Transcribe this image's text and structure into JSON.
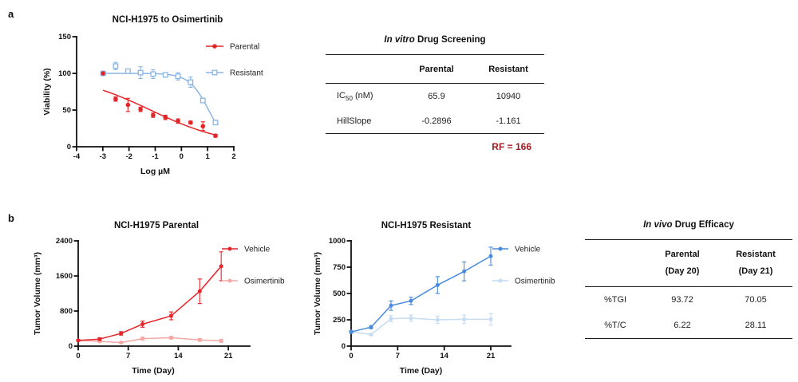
{
  "panel_labels": {
    "a": "a",
    "b": "b"
  },
  "colors": {
    "rf_note": "#a21d22",
    "axis": "#111111",
    "parental_red": "#e3262a",
    "osimertinib_pink": "#f4a8a4",
    "resistant_light_blue": "#8ab6e6",
    "vehicle_blue": "#4a8cdb",
    "osimertinib_pale_blue": "#c6dbf4"
  },
  "chart_data": [
    {
      "id": "dose-response",
      "type": "line",
      "title": "NCI-H1975 to Osimertinib",
      "xlabel": "Log µM",
      "ylabel": "Viability (%)",
      "xlim": [
        -4,
        2
      ],
      "ylim": [
        0,
        150
      ],
      "xticks": [
        -4,
        -3,
        -2,
        -1,
        0,
        1,
        2
      ],
      "yticks": [
        0,
        50,
        100,
        150
      ],
      "grid": false,
      "legend_position": "right",
      "series": [
        {
          "name": "Parental",
          "color": "#e3262a",
          "marker": "circle-filled",
          "x": [
            -2.99,
            -2.51,
            -2.04,
            -1.56,
            -1.08,
            -0.61,
            -0.13,
            0.35,
            0.82,
            1.3
          ],
          "y": [
            100,
            65,
            57,
            51,
            43,
            40,
            35,
            33,
            28,
            15
          ],
          "err": [
            0,
            3,
            9,
            3,
            3,
            3,
            3,
            2,
            6,
            2
          ],
          "fit": {
            "model": "four-parameter-logistic",
            "top": 100,
            "bottom": 0,
            "log_ic50": -1.181,
            "hill_slope": -0.2896,
            "range": [
              -2.99,
              1.3
            ]
          }
        },
        {
          "name": "Resistant",
          "color": "#8ab6e6",
          "marker": "square-open",
          "x": [
            -2.99,
            -2.51,
            -2.04,
            -1.56,
            -1.08,
            -0.61,
            -0.13,
            0.35,
            0.82,
            1.3
          ],
          "y": [
            100,
            110,
            103,
            101,
            99,
            98,
            96,
            88,
            63,
            33
          ],
          "err": [
            0,
            5,
            3,
            8,
            6,
            3,
            5,
            7,
            3,
            3
          ],
          "fit": {
            "model": "four-parameter-logistic",
            "top": 100,
            "bottom": 0,
            "log_ic50": 1.039,
            "hill_slope": -1.161,
            "range": [
              -2.99,
              1.3
            ]
          }
        }
      ]
    },
    {
      "id": "tumor-parental",
      "type": "line",
      "title": "NCI-H1975 Parental",
      "xlabel": "Time (Day)",
      "ylabel": "Tumor Volume (mm³)",
      "xlim": [
        0,
        24
      ],
      "ylim": [
        0,
        2400
      ],
      "xticks": [
        0,
        7,
        14,
        21
      ],
      "yticks": [
        0,
        800,
        1600,
        2400
      ],
      "grid": false,
      "legend_position": "right",
      "series": [
        {
          "name": "Vehicle",
          "color": "#e3262a",
          "marker": "circle-filled",
          "x": [
            0,
            3,
            6,
            9,
            13,
            17,
            20
          ],
          "y": [
            130,
            160,
            290,
            500,
            690,
            1250,
            1820
          ],
          "err": [
            20,
            30,
            40,
            70,
            90,
            280,
            330
          ]
        },
        {
          "name": "Osimertinib",
          "color": "#f4a8a4",
          "marker": "circle-filled",
          "x": [
            0,
            3,
            6,
            9,
            13,
            17,
            20
          ],
          "y": [
            130,
            110,
            80,
            170,
            190,
            140,
            120
          ],
          "err": [
            15,
            15,
            20,
            35,
            30,
            30,
            35
          ]
        }
      ]
    },
    {
      "id": "tumor-resistant",
      "type": "line",
      "title": "NCI-H1975 Resistant",
      "xlabel": "Time (Day)",
      "ylabel": "Tumor Volume (mm³)",
      "xlim": [
        0,
        24
      ],
      "ylim": [
        0,
        1000
      ],
      "xticks": [
        0,
        7,
        14,
        21
      ],
      "yticks": [
        0,
        250,
        500,
        750,
        1000
      ],
      "grid": false,
      "legend_position": "right",
      "series": [
        {
          "name": "Vehicle",
          "color": "#4a8cdb",
          "marker": "circle-filled",
          "x": [
            0,
            3,
            6,
            9,
            13,
            17,
            21
          ],
          "y": [
            135,
            180,
            385,
            430,
            580,
            710,
            855
          ],
          "err": [
            12,
            15,
            45,
            35,
            80,
            90,
            85
          ]
        },
        {
          "name": "Osimertinib",
          "color": "#c6dbf4",
          "marker": "circle-filled",
          "x": [
            0,
            3,
            6,
            9,
            13,
            17,
            21
          ],
          "y": [
            135,
            110,
            260,
            265,
            250,
            255,
            255
          ],
          "err": [
            10,
            10,
            30,
            30,
            35,
            40,
            55
          ]
        }
      ]
    }
  ],
  "tables": {
    "invitro": {
      "title_em": "In vitro",
      "title_rest": " Drug Screening",
      "col_headers": [
        "Parental",
        "Resistant"
      ],
      "rows": [
        {
          "label_pre": "IC",
          "label_sub": "50",
          "label_post": " (nM)",
          "values": [
            "65.9",
            "10940"
          ]
        },
        {
          "label": "HillSlope",
          "values": [
            "-0.2896",
            "-1.161"
          ]
        }
      ],
      "note": "RF = 166"
    },
    "invivo": {
      "title_em": "In vivo",
      "title_rest": " Drug Efficacy",
      "col_headers": [
        {
          "line1": "Parental",
          "line2": "(Day 20)"
        },
        {
          "line1": "Resistant",
          "line2": "(Day 21)"
        }
      ],
      "rows": [
        {
          "label": "%TGI",
          "values": [
            "93.72",
            "70.05"
          ]
        },
        {
          "label": "%T/C",
          "values": [
            "6.22",
            "28.11"
          ]
        }
      ]
    }
  }
}
